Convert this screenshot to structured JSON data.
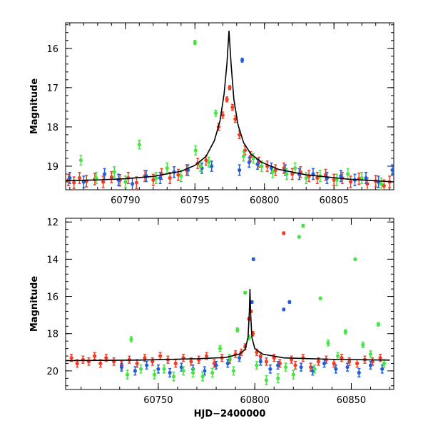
{
  "colors": {
    "series_red": "#f23c24",
    "series_blue": "#1f5fdc",
    "series_green": "#44e640",
    "model": "#000000"
  },
  "chart_data": [
    {
      "type": "scatter",
      "title": "",
      "xlabel": "",
      "ylabel": "Magnitude",
      "xlim": [
        60785.7,
        60809.3
      ],
      "ylim": [
        19.6,
        15.35
      ],
      "y_inverted": true,
      "grid": false,
      "xticks": [
        60790,
        60795,
        60800,
        60805
      ],
      "xtick_labels": [
        "60790",
        "60795",
        "60800",
        "60805"
      ],
      "yticks": [
        16,
        17,
        18,
        19
      ],
      "ytick_labels": [
        "16",
        "17",
        "18",
        "19"
      ],
      "model_curve": {
        "x": [
          60785.7,
          60788,
          60790,
          60792,
          60794,
          60795,
          60795.8,
          60796.4,
          60796.8,
          60797.1,
          60797.3,
          60797.45,
          60797.6,
          60797.8,
          60798.1,
          60798.5,
          60799,
          60799.8,
          60801,
          60803,
          60806,
          60809.3
        ],
        "y": [
          19.37,
          19.35,
          19.32,
          19.26,
          19.13,
          18.98,
          18.75,
          18.35,
          17.85,
          17.15,
          16.4,
          15.55,
          16.4,
          17.3,
          17.95,
          18.4,
          18.68,
          18.9,
          19.08,
          19.22,
          19.33,
          19.4
        ]
      },
      "series": [
        {
          "color": "red",
          "x": [
            60785.9,
            60786.3,
            60786.7,
            60787.2,
            60787.8,
            60788.4,
            60789.0,
            60789.6,
            60790.2,
            60790.8,
            60791.4,
            60792.0,
            60792.6,
            60793.2,
            60793.8,
            60794.4,
            60795.2,
            60795.8,
            60796.7,
            60797.0,
            60797.3,
            60797.5,
            60797.7,
            60797.9,
            60798.2,
            60798.6,
            60799.0,
            60799.6,
            60800.2,
            60800.8,
            60801.4,
            60802.0,
            60802.6,
            60803.2,
            60803.8,
            60804.4,
            60805.0,
            60805.6,
            60806.2,
            60806.8,
            60807.4,
            60808.0,
            60808.6,
            60809.0
          ],
          "y": [
            19.35,
            19.42,
            19.3,
            19.38,
            19.33,
            19.4,
            19.28,
            19.36,
            19.3,
            19.42,
            19.25,
            19.35,
            19.2,
            19.3,
            19.22,
            19.1,
            18.93,
            18.85,
            18.0,
            17.7,
            17.3,
            17.0,
            17.5,
            17.8,
            18.2,
            18.6,
            18.75,
            18.9,
            19.0,
            19.1,
            19.05,
            19.2,
            19.15,
            19.25,
            19.3,
            19.22,
            19.35,
            19.3,
            19.4,
            19.32,
            19.45,
            19.38,
            19.5,
            19.4
          ]
        },
        {
          "color": "blue",
          "x": [
            60786.0,
            60787.0,
            60788.5,
            60789.5,
            60790.5,
            60791.5,
            60792.5,
            60793.5,
            60794.5,
            60795.5,
            60796.2,
            60798.4,
            60798.2,
            60798.9,
            60799.5,
            60800.5,
            60801.5,
            60802.5,
            60803.5,
            60804.5,
            60805.5,
            60806.5,
            60807.3,
            60808.2,
            60809.2
          ],
          "y": [
            19.3,
            19.4,
            19.2,
            19.35,
            19.45,
            19.25,
            19.3,
            19.15,
            19.1,
            19.05,
            19.0,
            16.3,
            19.1,
            18.9,
            18.95,
            19.05,
            19.1,
            19.2,
            19.2,
            19.3,
            19.25,
            19.35,
            19.3,
            19.4,
            19.1
          ]
        },
        {
          "color": "green",
          "x": [
            60786.8,
            60787.9,
            60789.2,
            60790.0,
            60791.0,
            60792.2,
            60793.0,
            60794.0,
            60795.0,
            60795.05,
            60795.4,
            60796.0,
            60796.5,
            60798.5,
            60799.2,
            60799.8,
            60800.6,
            60801.6,
            60802.2,
            60803.0,
            60804.0,
            60805.2,
            60806.0,
            60807.0,
            60808.4
          ],
          "y": [
            18.85,
            19.3,
            19.15,
            19.4,
            18.45,
            19.3,
            19.05,
            19.25,
            15.85,
            18.6,
            19.0,
            18.9,
            17.65,
            18.75,
            18.8,
            19.0,
            19.15,
            19.2,
            19.05,
            19.3,
            19.25,
            19.35,
            19.2,
            19.3,
            19.45
          ]
        }
      ]
    },
    {
      "type": "scatter",
      "title": "",
      "xlabel": "HJD−2400000",
      "ylabel": "Magnitude",
      "xlim": [
        60702.0,
        60872.0
      ],
      "ylim": [
        21.0,
        11.8
      ],
      "y_inverted": true,
      "grid": false,
      "xticks": [
        60750,
        60800,
        60850
      ],
      "xtick_labels": [
        "60750",
        "60800",
        "60850"
      ],
      "yticks": [
        12,
        14,
        16,
        18,
        20
      ],
      "ytick_labels": [
        "12",
        "14",
        "16",
        "18",
        "20"
      ],
      "model_curve": {
        "x": [
          60702,
          60740,
          60770,
          60785,
          60792,
          60795,
          60796.5,
          60797.2,
          60797.5,
          60797.8,
          60798.5,
          60800,
          60804,
          60815,
          60840,
          60870
        ],
        "y": [
          19.45,
          19.42,
          19.35,
          19.28,
          19.1,
          18.85,
          18.2,
          16.8,
          15.6,
          16.8,
          18.2,
          18.8,
          19.1,
          19.3,
          19.38,
          19.42
        ]
      },
      "series": [
        {
          "color": "red",
          "x": [
            60705,
            60708,
            60711,
            60714,
            60717,
            60720,
            60723,
            60727,
            60731,
            60735,
            60739,
            60743,
            60747,
            60751,
            60755,
            60759,
            60763,
            60767,
            60771,
            60775,
            60779,
            60783,
            60787,
            60790,
            60793,
            60795,
            60797,
            60798,
            60799,
            60801,
            60803,
            60806,
            60810,
            60813,
            60815,
            60819,
            60821,
            60825,
            60829,
            60833,
            60837,
            60841,
            60845,
            60849,
            60853,
            60857,
            60861,
            60865
          ],
          "y": [
            19.3,
            19.6,
            19.4,
            19.5,
            19.2,
            19.6,
            19.3,
            19.5,
            19.7,
            19.4,
            19.6,
            19.3,
            19.5,
            19.2,
            19.4,
            19.6,
            19.3,
            19.5,
            19.4,
            19.2,
            19.6,
            19.3,
            19.4,
            19.1,
            19.0,
            18.7,
            17.2,
            16.8,
            18.0,
            19.0,
            19.2,
            19.5,
            19.3,
            19.6,
            12.6,
            19.4,
            19.7,
            19.3,
            19.8,
            19.5,
            19.4,
            19.6,
            19.3,
            19.5,
            19.6,
            19.4,
            19.5,
            19.3
          ]
        },
        {
          "color": "blue",
          "x": [
            60731,
            60738,
            60744,
            60750,
            60756,
            60762,
            60768,
            60774,
            60780,
            60786,
            60792,
            60798.5,
            60799.3,
            60803,
            60808,
            60812,
            60815,
            60818,
            60824,
            60830,
            60836,
            60842,
            60848,
            60854,
            60860,
            60866
          ],
          "y": [
            19.8,
            20.0,
            19.7,
            19.9,
            20.1,
            19.8,
            19.9,
            20.0,
            19.7,
            19.6,
            19.3,
            16.3,
            14.0,
            19.5,
            19.9,
            19.7,
            16.7,
            16.3,
            19.8,
            20.0,
            19.6,
            19.9,
            19.8,
            20.1,
            19.7,
            19.9
          ]
        },
        {
          "color": "green",
          "x": [
            60734,
            60736,
            60741,
            60748,
            60753,
            60758,
            60763,
            60768,
            60773,
            60778,
            60782,
            60787,
            60789,
            60791,
            60795,
            60797,
            60801,
            60806,
            60812,
            60816,
            60820,
            60823,
            60825,
            60831,
            60834,
            60838,
            60843,
            60847,
            60852,
            60856,
            60860,
            60864,
            60867
          ],
          "y": [
            20.2,
            18.3,
            19.9,
            20.2,
            19.9,
            20.3,
            20.0,
            20.1,
            20.3,
            20.1,
            18.8,
            19.3,
            20.0,
            17.8,
            15.8,
            18.2,
            19.7,
            20.5,
            20.4,
            19.8,
            20.2,
            12.8,
            12.2,
            19.9,
            16.1,
            18.5,
            19.2,
            17.9,
            14.0,
            18.6,
            19.1,
            17.5,
            19.6
          ]
        }
      ]
    }
  ]
}
